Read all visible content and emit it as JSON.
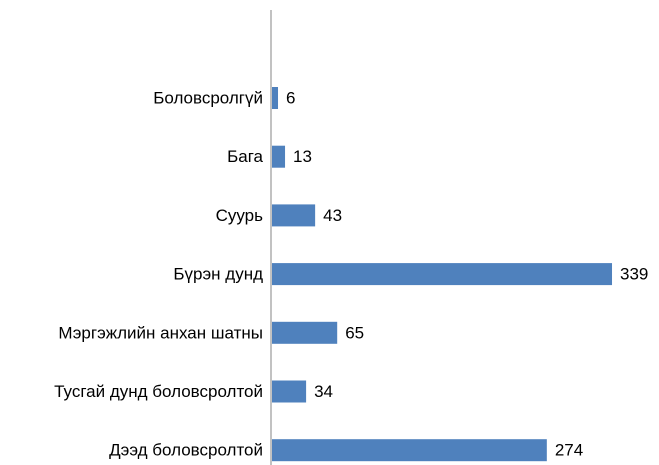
{
  "chart_data": {
    "type": "bar",
    "orientation": "horizontal",
    "categories": [
      "Боловсролгүй",
      "Бага",
      "Суурь",
      "Бүрэн дунд",
      "Мэргэжлийн анхан шатны",
      "Тусгай дунд боловсролтой",
      "Дээд боловсролтой"
    ],
    "values": [
      6,
      13,
      43,
      339,
      65,
      34,
      274
    ],
    "color": "#4f81bd"
  }
}
